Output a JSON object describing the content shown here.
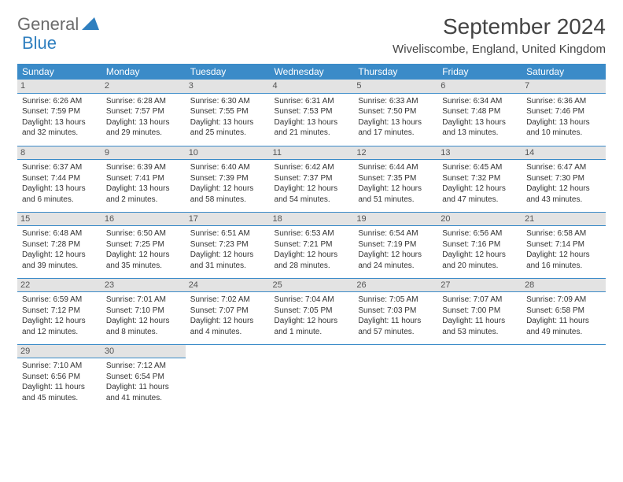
{
  "logo": {
    "text1": "General",
    "text2": "Blue"
  },
  "title": "September 2024",
  "location": "Wiveliscombe, England, United Kingdom",
  "colors": {
    "header_bg": "#3b8bc8",
    "header_text": "#ffffff",
    "daynum_bg": "#e3e3e3",
    "border": "#3b8bc8",
    "logo_gray": "#6b6b6b",
    "logo_blue": "#2f7fbf"
  },
  "weekdays": [
    "Sunday",
    "Monday",
    "Tuesday",
    "Wednesday",
    "Thursday",
    "Friday",
    "Saturday"
  ],
  "weeks": [
    [
      {
        "n": "1",
        "sr": "6:26 AM",
        "ss": "7:59 PM",
        "dl": "13 hours and 32 minutes."
      },
      {
        "n": "2",
        "sr": "6:28 AM",
        "ss": "7:57 PM",
        "dl": "13 hours and 29 minutes."
      },
      {
        "n": "3",
        "sr": "6:30 AM",
        "ss": "7:55 PM",
        "dl": "13 hours and 25 minutes."
      },
      {
        "n": "4",
        "sr": "6:31 AM",
        "ss": "7:53 PM",
        "dl": "13 hours and 21 minutes."
      },
      {
        "n": "5",
        "sr": "6:33 AM",
        "ss": "7:50 PM",
        "dl": "13 hours and 17 minutes."
      },
      {
        "n": "6",
        "sr": "6:34 AM",
        "ss": "7:48 PM",
        "dl": "13 hours and 13 minutes."
      },
      {
        "n": "7",
        "sr": "6:36 AM",
        "ss": "7:46 PM",
        "dl": "13 hours and 10 minutes."
      }
    ],
    [
      {
        "n": "8",
        "sr": "6:37 AM",
        "ss": "7:44 PM",
        "dl": "13 hours and 6 minutes."
      },
      {
        "n": "9",
        "sr": "6:39 AM",
        "ss": "7:41 PM",
        "dl": "13 hours and 2 minutes."
      },
      {
        "n": "10",
        "sr": "6:40 AM",
        "ss": "7:39 PM",
        "dl": "12 hours and 58 minutes."
      },
      {
        "n": "11",
        "sr": "6:42 AM",
        "ss": "7:37 PM",
        "dl": "12 hours and 54 minutes."
      },
      {
        "n": "12",
        "sr": "6:44 AM",
        "ss": "7:35 PM",
        "dl": "12 hours and 51 minutes."
      },
      {
        "n": "13",
        "sr": "6:45 AM",
        "ss": "7:32 PM",
        "dl": "12 hours and 47 minutes."
      },
      {
        "n": "14",
        "sr": "6:47 AM",
        "ss": "7:30 PM",
        "dl": "12 hours and 43 minutes."
      }
    ],
    [
      {
        "n": "15",
        "sr": "6:48 AM",
        "ss": "7:28 PM",
        "dl": "12 hours and 39 minutes."
      },
      {
        "n": "16",
        "sr": "6:50 AM",
        "ss": "7:25 PM",
        "dl": "12 hours and 35 minutes."
      },
      {
        "n": "17",
        "sr": "6:51 AM",
        "ss": "7:23 PM",
        "dl": "12 hours and 31 minutes."
      },
      {
        "n": "18",
        "sr": "6:53 AM",
        "ss": "7:21 PM",
        "dl": "12 hours and 28 minutes."
      },
      {
        "n": "19",
        "sr": "6:54 AM",
        "ss": "7:19 PM",
        "dl": "12 hours and 24 minutes."
      },
      {
        "n": "20",
        "sr": "6:56 AM",
        "ss": "7:16 PM",
        "dl": "12 hours and 20 minutes."
      },
      {
        "n": "21",
        "sr": "6:58 AM",
        "ss": "7:14 PM",
        "dl": "12 hours and 16 minutes."
      }
    ],
    [
      {
        "n": "22",
        "sr": "6:59 AM",
        "ss": "7:12 PM",
        "dl": "12 hours and 12 minutes."
      },
      {
        "n": "23",
        "sr": "7:01 AM",
        "ss": "7:10 PM",
        "dl": "12 hours and 8 minutes."
      },
      {
        "n": "24",
        "sr": "7:02 AM",
        "ss": "7:07 PM",
        "dl": "12 hours and 4 minutes."
      },
      {
        "n": "25",
        "sr": "7:04 AM",
        "ss": "7:05 PM",
        "dl": "12 hours and 1 minute."
      },
      {
        "n": "26",
        "sr": "7:05 AM",
        "ss": "7:03 PM",
        "dl": "11 hours and 57 minutes."
      },
      {
        "n": "27",
        "sr": "7:07 AM",
        "ss": "7:00 PM",
        "dl": "11 hours and 53 minutes."
      },
      {
        "n": "28",
        "sr": "7:09 AM",
        "ss": "6:58 PM",
        "dl": "11 hours and 49 minutes."
      }
    ],
    [
      {
        "n": "29",
        "sr": "7:10 AM",
        "ss": "6:56 PM",
        "dl": "11 hours and 45 minutes."
      },
      {
        "n": "30",
        "sr": "7:12 AM",
        "ss": "6:54 PM",
        "dl": "11 hours and 41 minutes."
      },
      null,
      null,
      null,
      null,
      null
    ]
  ],
  "labels": {
    "sunrise": "Sunrise:",
    "sunset": "Sunset:",
    "daylight": "Daylight:"
  }
}
